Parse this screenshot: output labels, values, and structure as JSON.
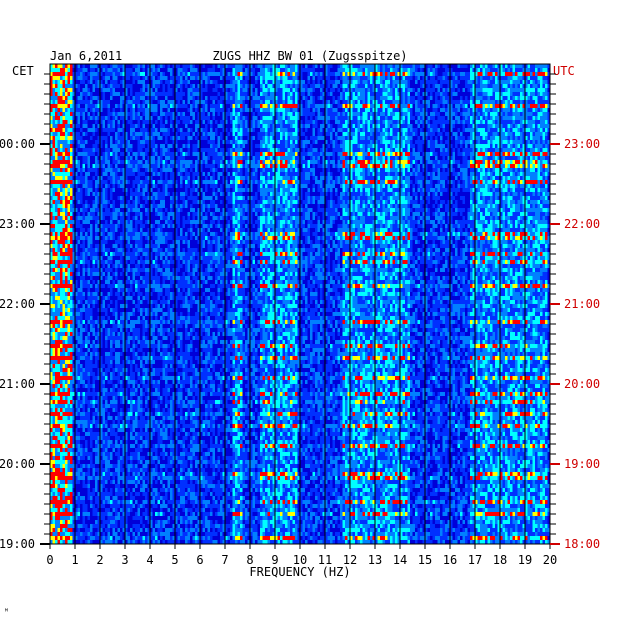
{
  "chart_data": {
    "type": "heatmap",
    "title": "ZUGS HHZ BW 01 (Zugsspitze)",
    "date": "Jan 6,2011",
    "xlabel": "FREQUENCY (HZ)",
    "x_ticks": [
      "0",
      "1",
      "2",
      "3",
      "4",
      "5",
      "6",
      "7",
      "8",
      "9",
      "10",
      "11",
      "12",
      "13",
      "14",
      "15",
      "16",
      "17",
      "18",
      "19",
      "20"
    ],
    "xlim": [
      0,
      20
    ],
    "left_axis_label": "CET",
    "right_axis_label": "UTC",
    "y_ticks_left": [
      "00:00",
      "23:00",
      "22:00",
      "21:00",
      "20:00",
      "19:00"
    ],
    "y_ticks_right": [
      "23:00",
      "22:00",
      "21:00",
      "20:00",
      "19:00",
      "18:00"
    ],
    "grid": true,
    "colormap": [
      "#000080",
      "#0000ff",
      "#00ffff",
      "#ffff00",
      "#ff0000"
    ],
    "energy_bands_hz": [
      [
        0,
        0.8
      ],
      [
        7.2,
        7.6
      ],
      [
        8.3,
        9.8
      ],
      [
        11.7,
        14.3
      ],
      [
        16.8,
        19.8
      ]
    ]
  },
  "corner_mark": "ᴹ",
  "colors": {
    "background": "#0000d8",
    "grid": "#000000",
    "right_axis": "#d00000",
    "left_axis": "#000000"
  }
}
